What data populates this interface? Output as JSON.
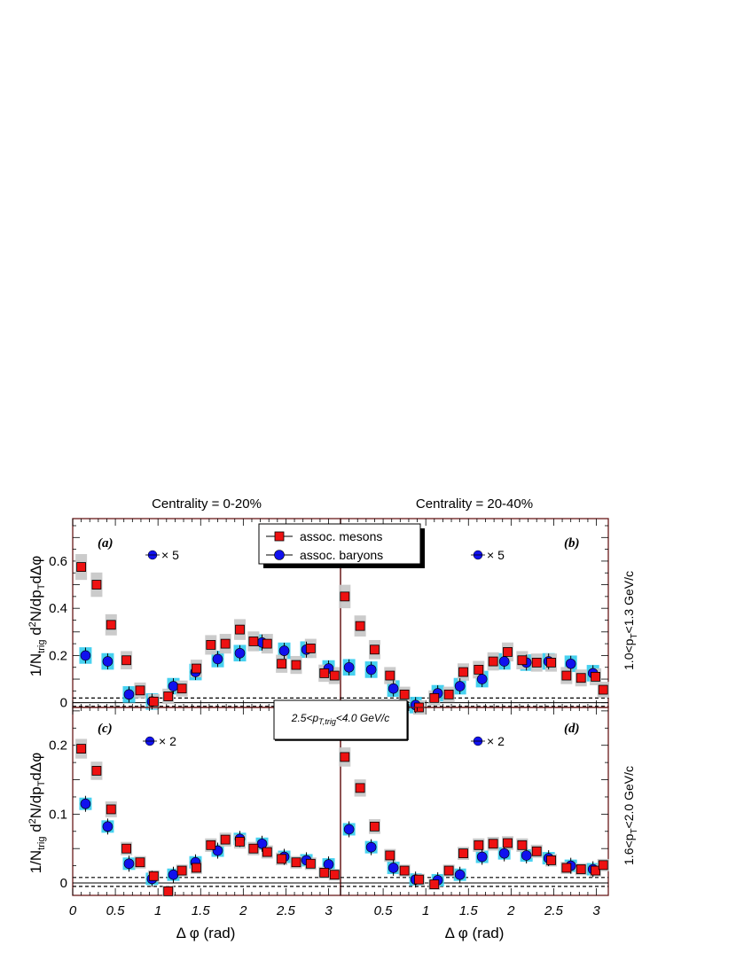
{
  "figure": {
    "column_titles": [
      "Centrality = 0-20%",
      "Centrality = 20-40%"
    ],
    "row_titles": [
      "1.0<p_T<1.3 GeV/c",
      "1.6<p_T<2.0 GeV/c"
    ],
    "ylabel": "1/N_trig d²N/dp_T dΔφ",
    "xlabel": "Δ φ (rad)",
    "center_box": "2.5<p_T,trig<4.0 GeV/c",
    "legend": [
      "assoc. mesons",
      "assoc. baryons"
    ]
  },
  "colors": {
    "mesons": "#ee1111",
    "baryons": "#1111ee",
    "meson_sys": "#c8c8c8",
    "baryon_sys": "#33ccee",
    "frame": "#6a1a1a"
  },
  "chart_data": [
    {
      "type": "scatter",
      "panel_label": "(a)",
      "scale_note": "× 5",
      "xlim": [
        0,
        3.14
      ],
      "ylim": [
        -0.02,
        0.78
      ],
      "yticks": [
        "0",
        "0.2",
        "0.4",
        "0.6"
      ],
      "xticks": [],
      "series": [
        {
          "name": "assoc. mesons",
          "x": [
            0.1,
            0.28,
            0.45,
            0.63,
            0.79,
            0.95,
            1.12,
            1.28,
            1.45,
            1.62,
            1.79,
            1.96,
            2.12,
            2.28,
            2.45,
            2.62,
            2.79,
            2.95,
            3.07
          ],
          "y": [
            0.575,
            0.5,
            0.33,
            0.18,
            0.052,
            0.005,
            0.027,
            0.06,
            0.145,
            0.245,
            0.25,
            0.31,
            0.26,
            0.25,
            0.165,
            0.16,
            0.23,
            0.125,
            0.115
          ]
        },
        {
          "name": "assoc. baryons",
          "x": [
            0.15,
            0.41,
            0.66,
            0.93,
            1.18,
            1.44,
            1.7,
            1.96,
            2.22,
            2.48,
            2.74,
            3.0
          ],
          "y": [
            0.2,
            0.175,
            0.035,
            0.005,
            0.07,
            0.13,
            0.185,
            0.21,
            0.255,
            0.22,
            0.225,
            0.145
          ]
        }
      ]
    },
    {
      "type": "scatter",
      "panel_label": "(b)",
      "scale_note": "× 5",
      "xlim": [
        0,
        3.14
      ],
      "ylim": [
        -0.02,
        0.78
      ],
      "yticks": [],
      "xticks": [],
      "series": [
        {
          "name": "assoc. mesons",
          "x": [
            0.05,
            0.23,
            0.4,
            0.58,
            0.75,
            0.92,
            1.1,
            1.27,
            1.44,
            1.62,
            1.79,
            1.96,
            2.13,
            2.3,
            2.47,
            2.65,
            2.82,
            2.99,
            3.08
          ],
          "y": [
            0.45,
            0.325,
            0.225,
            0.115,
            0.035,
            -0.02,
            0.02,
            0.035,
            0.13,
            0.14,
            0.175,
            0.215,
            0.18,
            0.17,
            0.17,
            0.115,
            0.105,
            0.11,
            0.055
          ]
        },
        {
          "name": "assoc. baryons",
          "x": [
            0.1,
            0.36,
            0.62,
            0.88,
            1.14,
            1.4,
            1.66,
            1.92,
            2.18,
            2.44,
            2.7,
            2.96
          ],
          "y": [
            0.15,
            0.14,
            0.06,
            -0.01,
            0.04,
            0.07,
            0.1,
            0.175,
            0.17,
            0.175,
            0.165,
            0.125
          ]
        }
      ]
    },
    {
      "type": "scatter",
      "panel_label": "(c)",
      "scale_note": "× 2",
      "xlim": [
        0,
        3.14
      ],
      "ylim": [
        -0.018,
        0.255
      ],
      "yticks": [
        "0",
        "0.1",
        "0.2"
      ],
      "xticks": [
        "0",
        "0.5",
        "1",
        "1.5",
        "2",
        "2.5",
        "3"
      ],
      "series": [
        {
          "name": "assoc. mesons",
          "x": [
            0.1,
            0.28,
            0.45,
            0.63,
            0.79,
            0.95,
            1.12,
            1.28,
            1.45,
            1.62,
            1.79,
            1.96,
            2.12,
            2.28,
            2.45,
            2.62,
            2.79,
            2.95,
            3.07
          ],
          "y": [
            0.195,
            0.163,
            0.107,
            0.05,
            0.03,
            0.01,
            -0.012,
            0.018,
            0.022,
            0.055,
            0.063,
            0.06,
            0.05,
            0.045,
            0.035,
            0.03,
            0.028,
            0.015,
            0.012
          ]
        },
        {
          "name": "assoc. baryons",
          "x": [
            0.15,
            0.41,
            0.66,
            0.93,
            1.18,
            1.44,
            1.7,
            1.96,
            2.22,
            2.48,
            2.74,
            3.0
          ],
          "y": [
            0.115,
            0.082,
            0.028,
            0.006,
            0.012,
            0.03,
            0.047,
            0.064,
            0.057,
            0.038,
            0.033,
            0.027
          ]
        }
      ]
    },
    {
      "type": "scatter",
      "panel_label": "(d)",
      "scale_note": "× 2",
      "xlim": [
        0,
        3.14
      ],
      "ylim": [
        -0.018,
        0.255
      ],
      "yticks": [],
      "xticks": [
        "0.5",
        "1",
        "1.5",
        "2",
        "2.5",
        "3"
      ],
      "series": [
        {
          "name": "assoc. mesons",
          "x": [
            0.05,
            0.23,
            0.4,
            0.58,
            0.75,
            0.92,
            1.1,
            1.27,
            1.44,
            1.62,
            1.79,
            1.96,
            2.13,
            2.3,
            2.47,
            2.65,
            2.82,
            2.99,
            3.08
          ],
          "y": [
            0.183,
            0.138,
            0.082,
            0.04,
            0.018,
            0.005,
            -0.002,
            0.018,
            0.043,
            0.055,
            0.057,
            0.058,
            0.055,
            0.046,
            0.033,
            0.022,
            0.02,
            0.018,
            0.026
          ]
        },
        {
          "name": "assoc. baryons",
          "x": [
            0.1,
            0.36,
            0.62,
            0.88,
            1.14,
            1.4,
            1.66,
            1.92,
            2.18,
            2.44,
            2.7,
            2.96
          ],
          "y": [
            0.078,
            0.052,
            0.022,
            0.005,
            0.004,
            0.012,
            0.038,
            0.043,
            0.04,
            0.036,
            0.025,
            0.02
          ]
        }
      ]
    }
  ]
}
